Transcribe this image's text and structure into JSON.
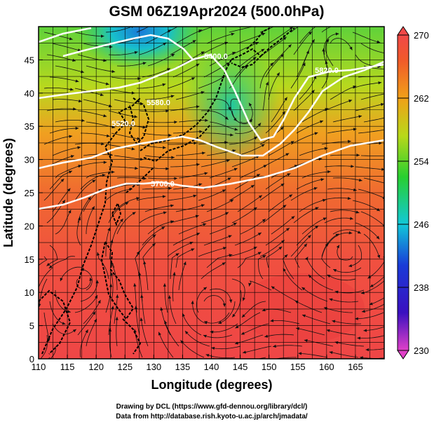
{
  "title": "GSM 06Z19Apr2024 (500.0hPa)",
  "xlabel": "Longitude (degrees)",
  "ylabel": "Latitude  (degrees)",
  "x_ticks": [
    "110",
    "115",
    "120",
    "125",
    "130",
    "135",
    "140",
    "145",
    "150",
    "155",
    "160",
    "165"
  ],
  "y_ticks": [
    "0",
    "5",
    "10",
    "15",
    "20",
    "25",
    "30",
    "35",
    "40",
    "45"
  ],
  "colorbar": {
    "labels": [
      "230",
      "238",
      "246",
      "254",
      "262",
      "270"
    ],
    "min": 230,
    "max": 270
  },
  "credits": {
    "line1": "Drawing by DCL (https://www.gfd-dennou.org/library/dcl/)",
    "line2": "Data from http://database.rish.kyoto-u.ac.jp/arch/jmadata/"
  },
  "contour_labels": [
    "5820.0",
    "5580.0",
    "5400.0",
    "5520.0",
    "5700.0"
  ],
  "chart_data": {
    "type": "heatmap",
    "variable": "temperature",
    "level": "500.0hPa",
    "time": "06Z19Apr2024",
    "xlim": [
      110,
      170
    ],
    "ylim": [
      0,
      50
    ],
    "colorbar_range": [
      230,
      270
    ],
    "grid": true
  }
}
